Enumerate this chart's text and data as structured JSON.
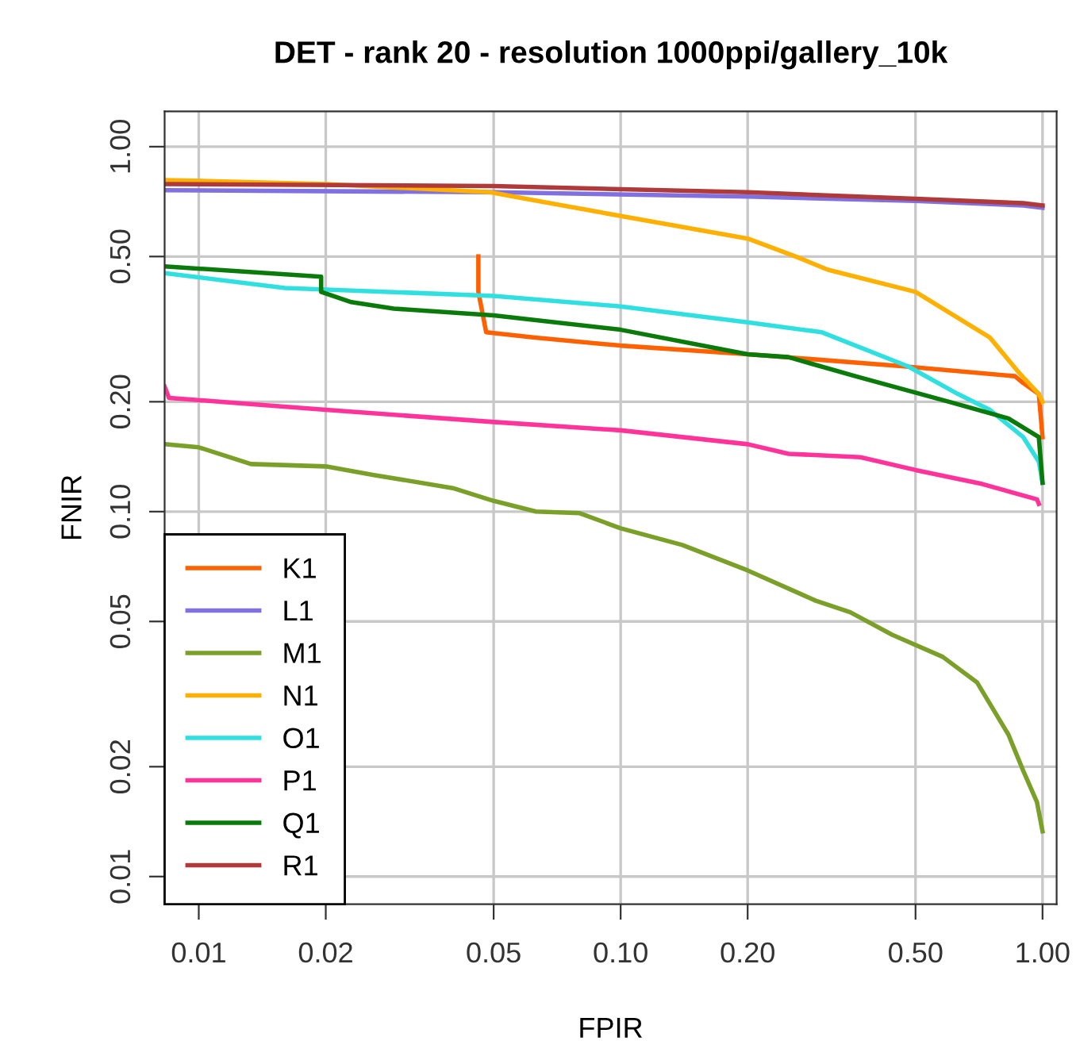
{
  "chart_data": {
    "type": "line",
    "title": "DET - rank 20 - resolution 1000ppi/gallery_10k",
    "xlabel": "FPIR",
    "ylabel": "FNIR",
    "log": "xy",
    "xlim": [
      0.0083,
      1.08
    ],
    "ylim": [
      0.0084,
      1.25
    ],
    "xticks": [
      {
        "value": 0.01,
        "label": "0.01"
      },
      {
        "value": 0.02,
        "label": "0.02"
      },
      {
        "value": 0.05,
        "label": "0.05"
      },
      {
        "value": 0.1,
        "label": "0.10"
      },
      {
        "value": 0.2,
        "label": "0.20"
      },
      {
        "value": 0.5,
        "label": "0.50"
      },
      {
        "value": 1,
        "label": "1.00"
      }
    ],
    "yticks": [
      {
        "value": 0.01,
        "label": "0.01"
      },
      {
        "value": 0.02,
        "label": "0.02"
      },
      {
        "value": 0.05,
        "label": "0.05"
      },
      {
        "value": 0.1,
        "label": "0.10"
      },
      {
        "value": 0.2,
        "label": "0.20"
      },
      {
        "value": 0.5,
        "label": "0.50"
      },
      {
        "value": 1,
        "label": "1.00"
      }
    ],
    "grid": true,
    "legend": "bottom left",
    "line_style": "solid",
    "marker": "none",
    "series": [
      {
        "name": "K1",
        "color": "#ff6000",
        "x": [
          0.046,
          0.046,
          0.048,
          0.062,
          0.1,
          0.2,
          0.47,
          0.86,
          0.9,
          0.98,
          1.0
        ],
        "values": [
          0.5,
          0.4,
          0.31,
          0.3,
          0.285,
          0.27,
          0.25,
          0.235,
          0.225,
          0.21,
          0.16
        ]
      },
      {
        "name": "L1",
        "color": "#8070e0",
        "x": [
          0.0083,
          0.05,
          0.2,
          0.5,
          0.9,
          1.0
        ],
        "values": [
          0.76,
          0.75,
          0.73,
          0.71,
          0.69,
          0.68
        ]
      },
      {
        "name": "M1",
        "color": "#7ba02a",
        "x": [
          0.0083,
          0.01,
          0.0133,
          0.02,
          0.026,
          0.04,
          0.05,
          0.063,
          0.08,
          0.1,
          0.14,
          0.2,
          0.29,
          0.35,
          0.44,
          0.58,
          0.7,
          0.83,
          0.9,
          0.97,
          1.0
        ],
        "values": [
          0.153,
          0.15,
          0.135,
          0.133,
          0.126,
          0.116,
          0.107,
          0.1,
          0.099,
          0.09,
          0.081,
          0.069,
          0.057,
          0.053,
          0.046,
          0.04,
          0.034,
          0.0245,
          0.0195,
          0.016,
          0.0133
        ]
      },
      {
        "name": "N1",
        "color": "#ffb000",
        "x": [
          0.0083,
          0.02,
          0.049,
          0.09,
          0.2,
          0.26,
          0.31,
          0.5,
          0.75,
          0.88,
          0.98,
          1.0
        ],
        "values": [
          0.81,
          0.79,
          0.75,
          0.66,
          0.56,
          0.5,
          0.46,
          0.4,
          0.3,
          0.24,
          0.21,
          0.2
        ]
      },
      {
        "name": "O1",
        "color": "#30e0e0",
        "x": [
          0.0083,
          0.016,
          0.05,
          0.1,
          0.2,
          0.3,
          0.48,
          0.63,
          0.75,
          0.9,
          0.98,
          1.0
        ],
        "values": [
          0.45,
          0.41,
          0.39,
          0.365,
          0.33,
          0.31,
          0.25,
          0.21,
          0.19,
          0.16,
          0.137,
          0.12
        ]
      },
      {
        "name": "P1",
        "color": "#ff3399",
        "x": [
          0.0083,
          0.0085,
          0.02,
          0.05,
          0.1,
          0.2,
          0.25,
          0.37,
          0.5,
          0.72,
          0.97,
          0.98
        ],
        "values": [
          0.22,
          0.205,
          0.19,
          0.176,
          0.167,
          0.153,
          0.144,
          0.141,
          0.13,
          0.119,
          0.108,
          0.105
        ]
      },
      {
        "name": "Q1",
        "color": "#0a7a0a",
        "x": [
          0.0083,
          0.0195,
          0.0195,
          0.023,
          0.029,
          0.05,
          0.1,
          0.2,
          0.25,
          0.36,
          0.6,
          0.83,
          0.98,
          1.0
        ],
        "values": [
          0.47,
          0.44,
          0.4,
          0.375,
          0.36,
          0.345,
          0.315,
          0.27,
          0.265,
          0.235,
          0.2,
          0.18,
          0.16,
          0.12
        ]
      },
      {
        "name": "R1",
        "color": "#b03a3a",
        "x": [
          0.0083,
          0.05,
          0.2,
          0.5,
          0.9,
          1.0
        ],
        "values": [
          0.79,
          0.78,
          0.75,
          0.72,
          0.7,
          0.69
        ]
      }
    ]
  }
}
